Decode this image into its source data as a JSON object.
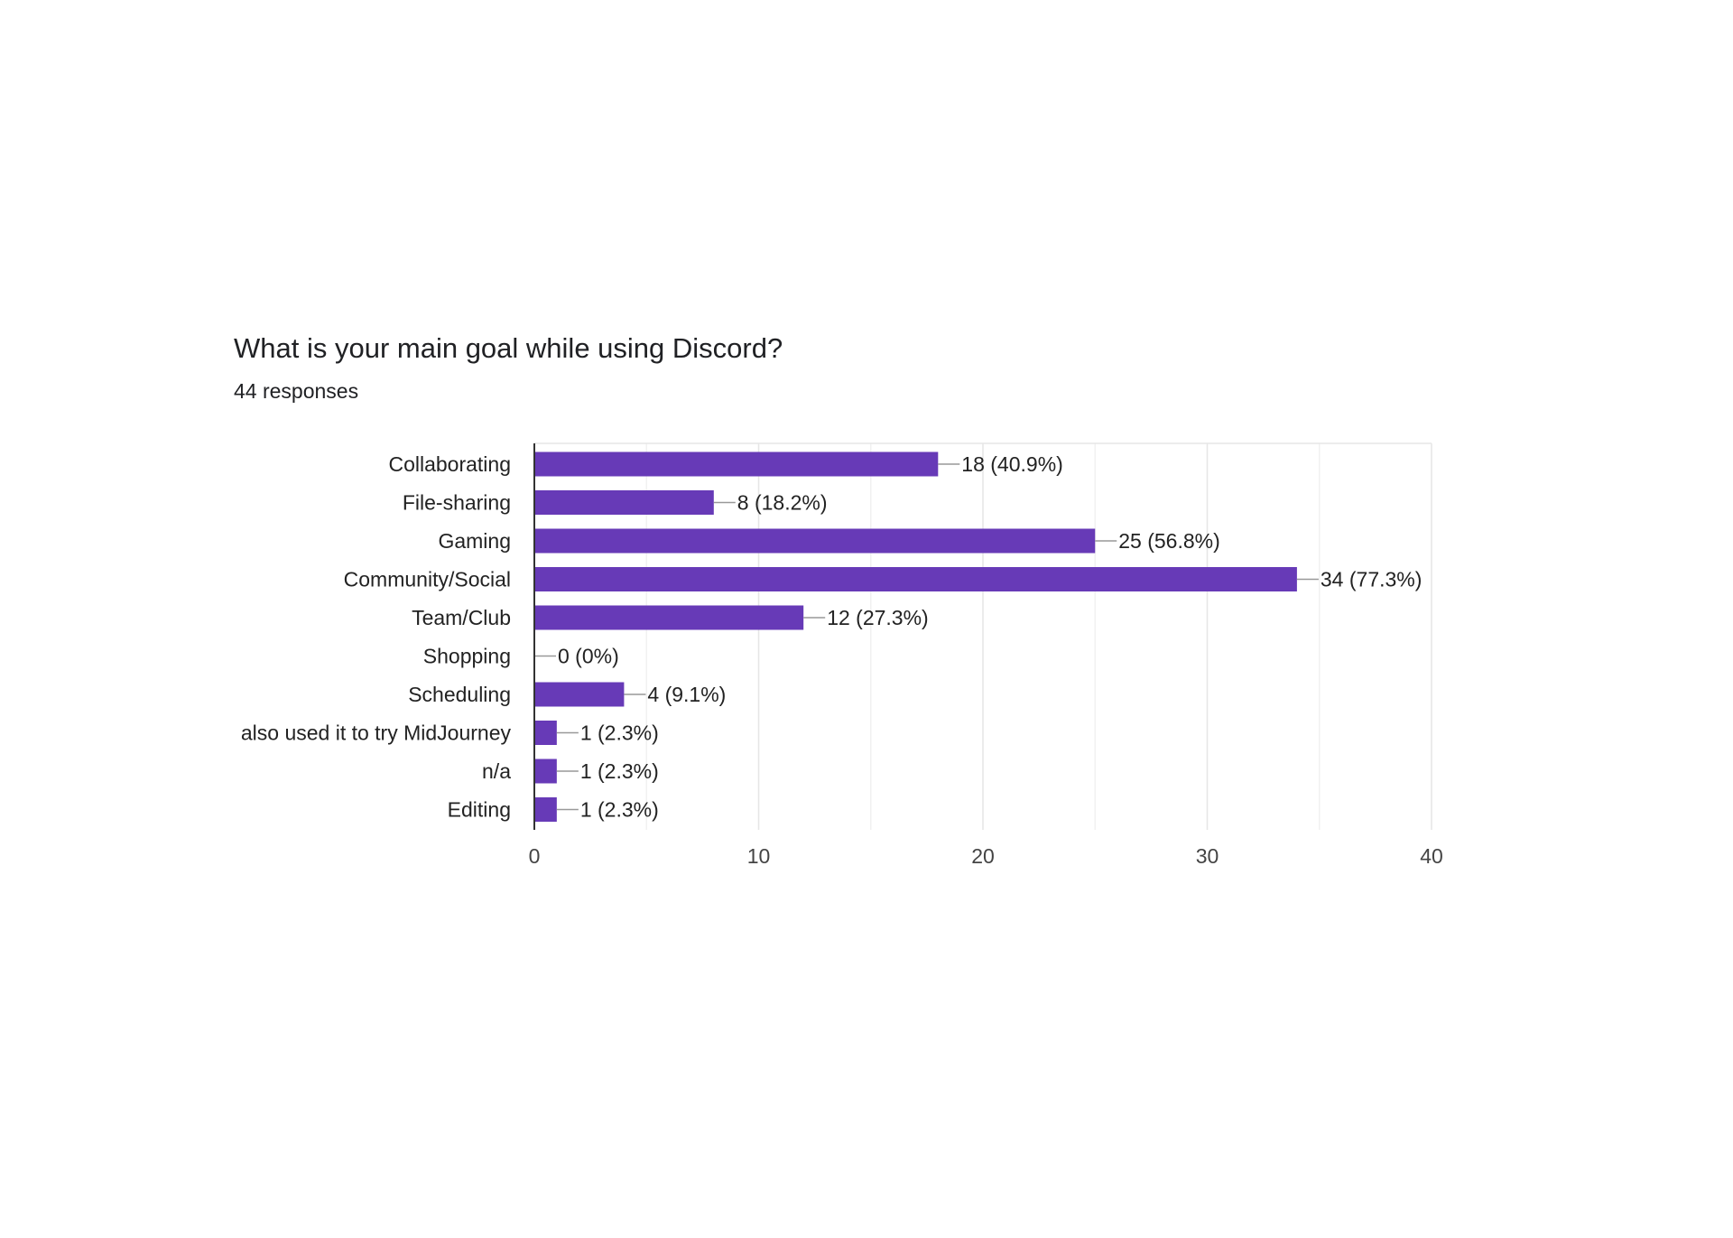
{
  "title": "What is your main goal while using Discord?",
  "subtitle": "44 responses",
  "colors": {
    "bar": "#673AB7",
    "grid": "#E6E6E6",
    "axis": "#333333",
    "leader": "#999999",
    "text": "#222222"
  },
  "chart_data": {
    "type": "bar",
    "orientation": "horizontal",
    "title": "What is your main goal while using Discord?",
    "subtitle": "44 responses",
    "categories": [
      "Collaborating",
      "File-sharing",
      "Gaming",
      "Community/Social",
      "Team/Club",
      "Shopping",
      "Scheduling",
      "also used it to try MidJourney",
      "n/a",
      "Editing"
    ],
    "values": [
      18,
      8,
      25,
      34,
      12,
      0,
      4,
      1,
      1,
      1
    ],
    "data_labels": [
      "18 (40.9%)",
      "8 (18.2%)",
      "25 (56.8%)",
      "34 (77.3%)",
      "12 (27.3%)",
      "0 (0%)",
      "4 (9.1%)",
      "1 (2.3%)",
      "1 (2.3%)",
      "1 (2.3%)"
    ],
    "xlim": [
      0,
      40
    ],
    "xticks": [
      0,
      10,
      20,
      30,
      40
    ],
    "minor_gridlines": [
      5,
      15,
      25,
      35
    ],
    "grid": true,
    "legend": "none"
  }
}
